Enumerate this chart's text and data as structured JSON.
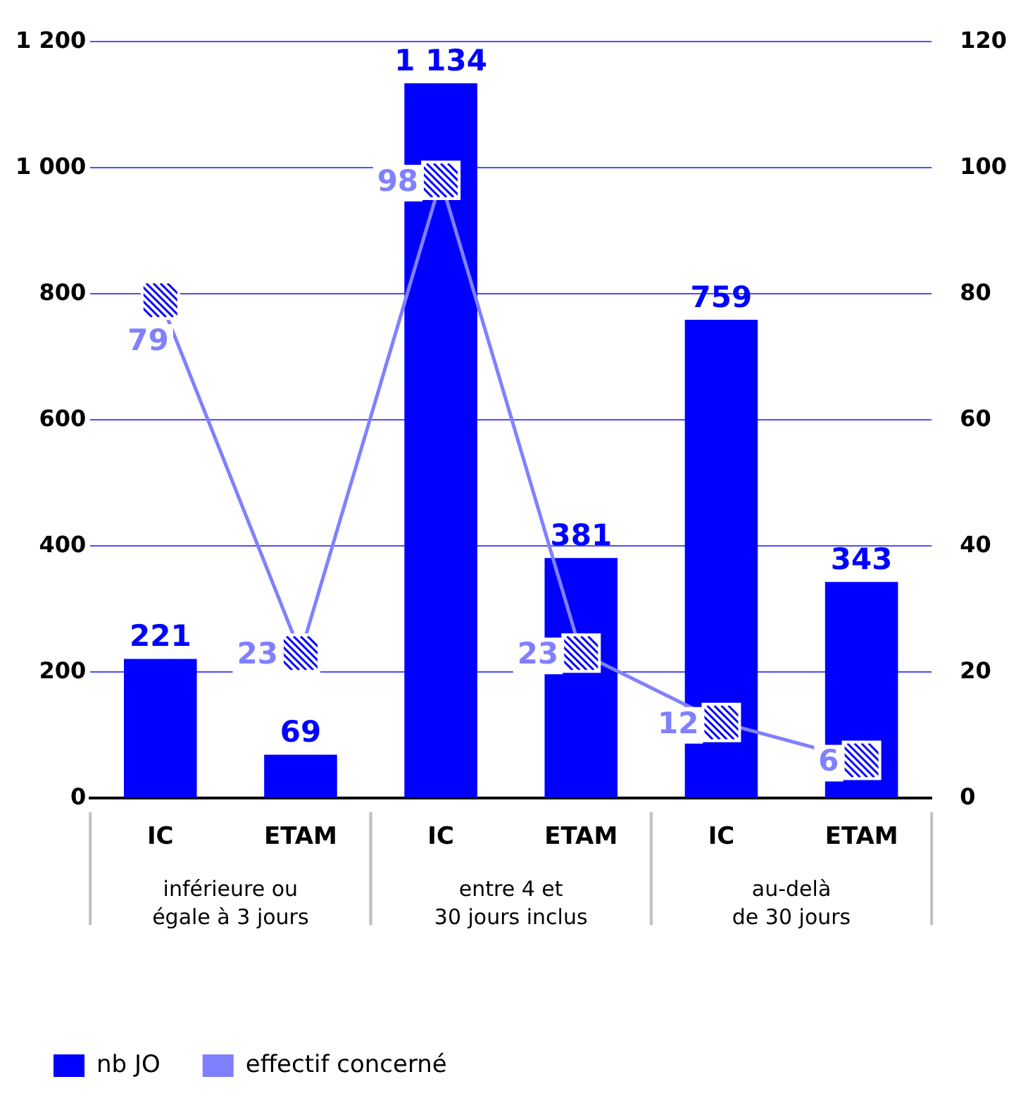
{
  "chart_data": {
    "type": "bar",
    "categories": [
      "IC",
      "ETAM",
      "IC",
      "ETAM",
      "IC",
      "ETAM"
    ],
    "series": [
      {
        "name": "nb JO",
        "color": "#0000ff",
        "values": [
          221,
          69,
          1134,
          381,
          759,
          343
        ],
        "value_labels": [
          "221",
          "69",
          "1 134",
          "381",
          "759",
          "343"
        ]
      },
      {
        "name": "effectif concerné",
        "type": "line",
        "axis": "y2",
        "color": "#8080ff",
        "marker": "square",
        "values": [
          79,
          23,
          98,
          23,
          12,
          6
        ],
        "value_labels": [
          "79",
          "23",
          "98",
          "23",
          "12",
          "6"
        ]
      }
    ],
    "ylim": [
      0,
      1200
    ],
    "yticks": [
      0,
      200,
      400,
      600,
      800,
      {
        "value": 1000,
        "label": "1 000"
      },
      {
        "value": 1200,
        "label": "1 200"
      }
    ],
    "y2lim": [
      0,
      120
    ],
    "y2ticks": [
      0,
      20,
      40,
      60,
      80,
      100,
      120
    ],
    "annotations": [
      "inférieure ou\négale à 3 jours",
      "entre 4 et\n30 jours inclus",
      "au-delà\nde 30 jours"
    ],
    "grid": "y",
    "legend": "bottom left"
  }
}
